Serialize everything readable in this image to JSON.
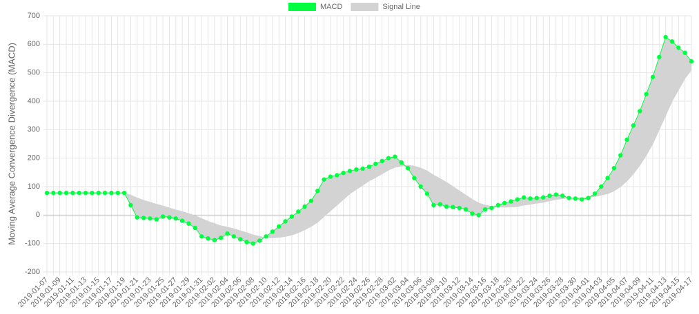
{
  "chart_data": {
    "type": "line",
    "y_label": "Moving Average Convergence Divergence (MACD)",
    "categories": [
      "2019-01-07",
      null,
      "2019-01-09",
      null,
      "2019-01-11",
      null,
      "2019-01-13",
      null,
      "2019-01-15",
      null,
      "2019-01-17",
      null,
      "2019-01-19",
      null,
      "2019-01-21",
      null,
      "2019-01-23",
      null,
      "2019-01-25",
      null,
      "2019-01-27",
      null,
      "2019-01-29",
      null,
      "2019-01-31",
      null,
      "2019-02-02",
      null,
      "2019-02-04",
      null,
      "2019-02-06",
      null,
      "2019-02-08",
      null,
      "2019-02-10",
      null,
      "2019-02-12",
      null,
      "2019-02-14",
      null,
      "2019-02-16",
      null,
      "2019-02-18",
      null,
      "2019-02-20",
      null,
      "2019-02-22",
      null,
      "2019-02-24",
      null,
      "2019-02-26",
      null,
      "2019-02-28",
      null,
      "2019-03-02",
      null,
      "2019-03-04",
      null,
      "2019-03-06",
      null,
      "2019-03-08",
      null,
      "2019-03-10",
      null,
      "2019-03-12",
      null,
      "2019-03-14",
      null,
      "2019-03-16",
      null,
      "2019-03-18",
      null,
      "2019-03-20",
      null,
      "2019-03-22",
      null,
      "2019-03-24",
      null,
      "2019-03-26",
      null,
      "2019-03-28",
      null,
      "2019-03-30",
      null,
      "2019-04-01",
      null,
      "2019-04-03",
      null,
      "2019-04-05",
      null,
      "2019-04-07",
      null,
      "2019-04-09",
      null,
      "2019-04-11",
      null,
      "2019-04-13",
      null,
      "2019-04-15",
      null,
      "2019-04-17"
    ],
    "series": [
      {
        "name": "MACD",
        "color": "#00ff40",
        "values": [
          78,
          78,
          78,
          78,
          78,
          78,
          78,
          78,
          78,
          78,
          78,
          78,
          78,
          35,
          -8,
          -10,
          -12,
          -15,
          -5,
          -8,
          -12,
          -20,
          -30,
          -45,
          -75,
          -82,
          -88,
          -80,
          -65,
          -75,
          -85,
          -95,
          -100,
          -90,
          -75,
          -58,
          -40,
          -22,
          -5,
          12,
          30,
          50,
          85,
          125,
          135,
          140,
          148,
          155,
          160,
          163,
          170,
          180,
          190,
          200,
          205,
          185,
          165,
          130,
          100,
          75,
          35,
          38,
          30,
          28,
          25,
          20,
          5,
          0,
          20,
          25,
          35,
          42,
          48,
          55,
          62,
          58,
          60,
          62,
          68,
          72,
          68,
          60,
          58,
          55,
          60,
          75,
          100,
          130,
          165,
          210,
          265,
          315,
          365,
          425,
          485,
          555,
          625,
          610,
          588,
          570,
          540
        ]
      },
      {
        "name": "Signal Line",
        "color": "#d3d3d3",
        "values": [
          78,
          78,
          78,
          78,
          78,
          78,
          78,
          78,
          78,
          78,
          78,
          78,
          78,
          70,
          60,
          52,
          45,
          38,
          32,
          25,
          18,
          12,
          5,
          -2,
          -12,
          -22,
          -30,
          -38,
          -42,
          -48,
          -55,
          -62,
          -70,
          -75,
          -80,
          -80,
          -78,
          -75,
          -70,
          -62,
          -52,
          -40,
          -25,
          -5,
          15,
          35,
          55,
          75,
          90,
          105,
          120,
          132,
          145,
          158,
          168,
          172,
          175,
          172,
          165,
          155,
          140,
          128,
          115,
          100,
          85,
          70,
          55,
          42,
          35,
          30,
          28,
          28,
          28,
          30,
          35,
          38,
          42,
          45,
          50,
          55,
          58,
          60,
          60,
          60,
          62,
          65,
          70,
          75,
          85,
          100,
          120,
          145,
          175,
          210,
          250,
          300,
          350,
          400,
          440,
          480,
          510
        ]
      }
    ],
    "ylim": [
      -200,
      700
    ],
    "yticks": [
      -200,
      -100,
      0,
      100,
      200,
      300,
      400,
      500,
      600,
      700
    ],
    "grid": true
  }
}
